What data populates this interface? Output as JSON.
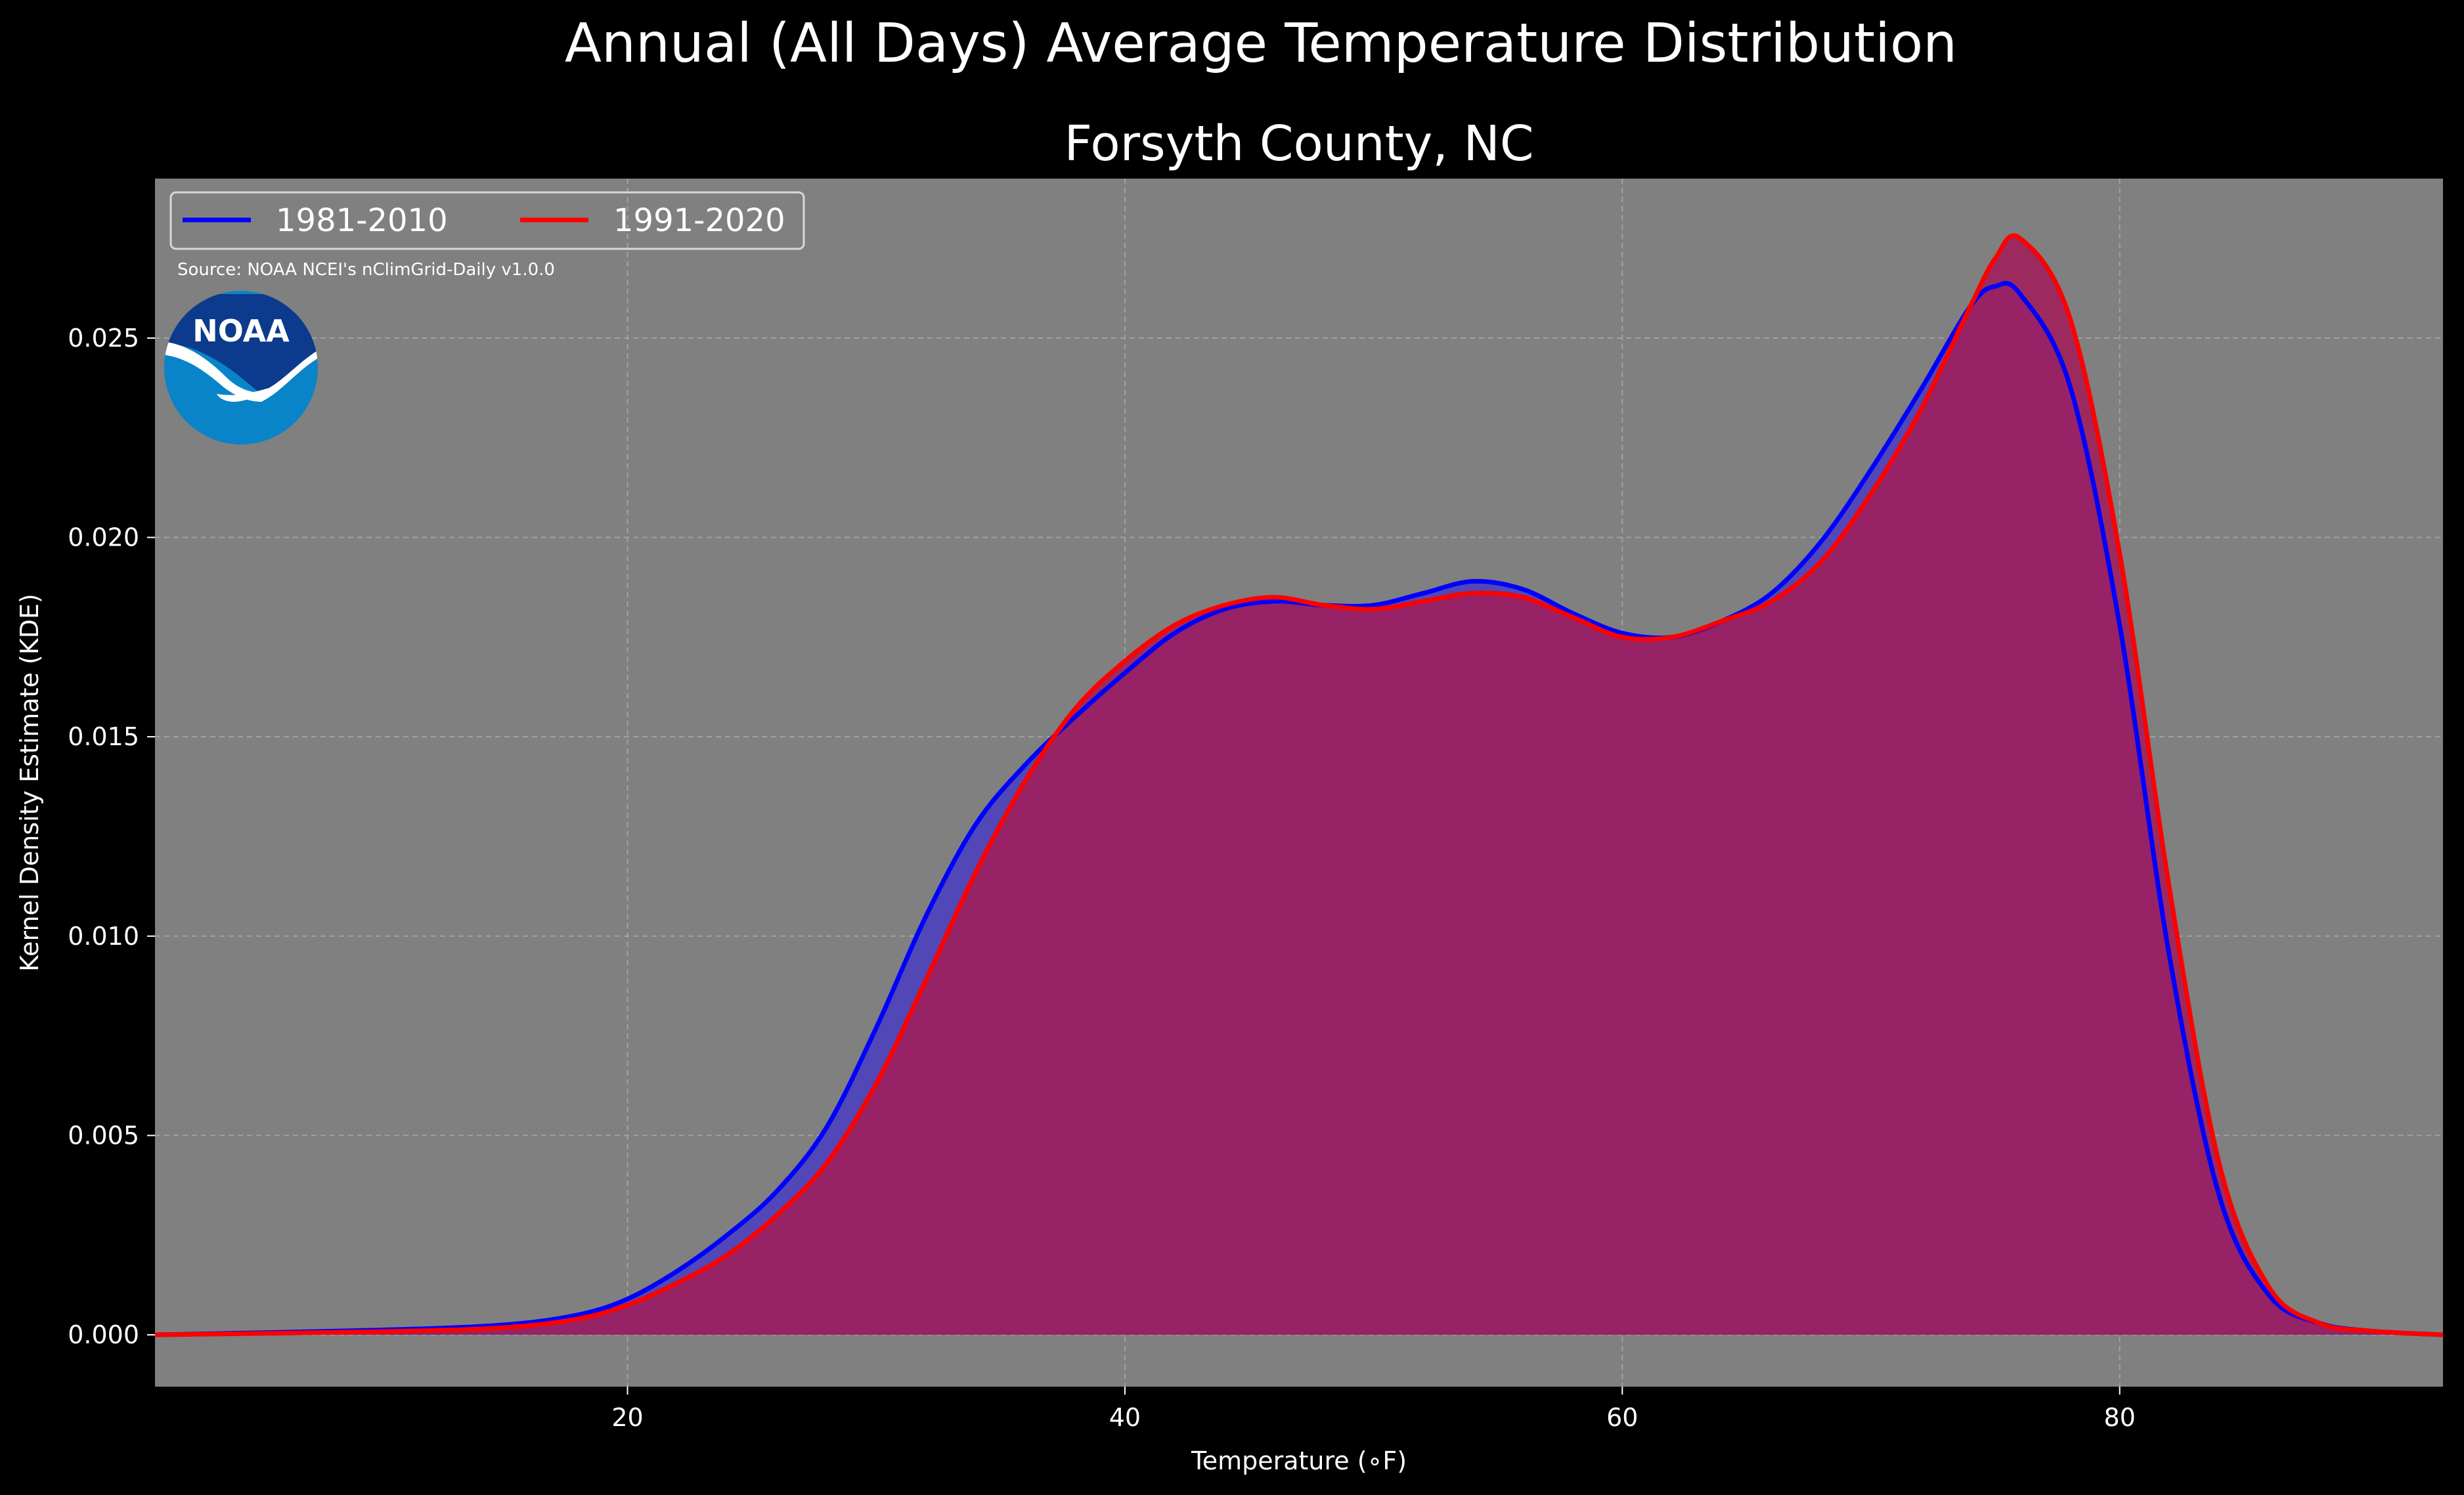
{
  "chart_data": {
    "type": "area",
    "suptitle": "Annual (All Days) Average Temperature Distribution",
    "title": "Forsyth County, NC",
    "xlabel": "Temperature (∘F)",
    "ylabel": "Kernel Density Estimate (KDE)",
    "xlim": [
      1,
      93
    ],
    "ylim": [
      -0.0013,
      0.029
    ],
    "xticks": [
      20,
      40,
      60,
      80
    ],
    "xtick_labels": [
      "20",
      "40",
      "60",
      "80"
    ],
    "yticks": [
      0.0,
      0.005,
      0.01,
      0.015,
      0.02,
      0.025
    ],
    "ytick_labels": [
      "0.000",
      "0.005",
      "0.010",
      "0.015",
      "0.020",
      "0.025"
    ],
    "grid": true,
    "legend_position": "top-left",
    "source_note": "Source: NOAA NCEI's nClimGrid-Daily v1.0.0",
    "logo_text": "NOAA",
    "colors": {
      "figure_bg": "#000000",
      "plot_bg": "#808080",
      "fill_1981_2010": "#4a3dc0",
      "fill_1991_2020": "#a01e5a",
      "grid": "#b0b0b0"
    },
    "series": [
      {
        "name": "1981-2010",
        "color": "#0000ff",
        "x": [
          1,
          10,
          15,
          18,
          20,
          22,
          24,
          26,
          28,
          30,
          32,
          34,
          36,
          38,
          40,
          42,
          44,
          46,
          48,
          50,
          52,
          54,
          56,
          58,
          60,
          62,
          64,
          66,
          68,
          70,
          72,
          74,
          75,
          76,
          78,
          80,
          82,
          84,
          86,
          88,
          90,
          93
        ],
        "y": [
          0.0,
          0.00012,
          0.00025,
          0.0005,
          0.0009,
          0.0016,
          0.0025,
          0.0036,
          0.0052,
          0.0077,
          0.0105,
          0.0128,
          0.0143,
          0.0155,
          0.0166,
          0.0176,
          0.0182,
          0.0184,
          0.0183,
          0.0183,
          0.0186,
          0.0189,
          0.0187,
          0.0181,
          0.0176,
          0.0175,
          0.0179,
          0.0186,
          0.0199,
          0.0217,
          0.0237,
          0.0258,
          0.0263,
          0.0261,
          0.0238,
          0.0178,
          0.0095,
          0.0035,
          0.001,
          0.0003,
          0.0001,
          0.0
        ]
      },
      {
        "name": "1991-2020",
        "color": "#ff0000",
        "x": [
          1,
          10,
          15,
          18,
          20,
          22,
          24,
          26,
          28,
          30,
          32,
          34,
          36,
          38,
          40,
          42,
          44,
          46,
          48,
          50,
          52,
          54,
          56,
          58,
          60,
          62,
          64,
          66,
          68,
          70,
          72,
          74,
          75,
          76,
          78,
          80,
          82,
          84,
          86,
          88,
          90,
          93
        ],
        "y": [
          0.0,
          8e-05,
          0.00018,
          0.0004,
          0.00075,
          0.0013,
          0.002,
          0.003,
          0.0043,
          0.0063,
          0.0089,
          0.0116,
          0.0139,
          0.0157,
          0.0169,
          0.0178,
          0.0183,
          0.0185,
          0.0183,
          0.0182,
          0.0184,
          0.0186,
          0.0185,
          0.018,
          0.0175,
          0.0175,
          0.0179,
          0.0184,
          0.0194,
          0.0211,
          0.0232,
          0.0258,
          0.027,
          0.0275,
          0.0255,
          0.0196,
          0.0112,
          0.0043,
          0.0012,
          0.0003,
          0.0001,
          0.0
        ]
      }
    ]
  }
}
